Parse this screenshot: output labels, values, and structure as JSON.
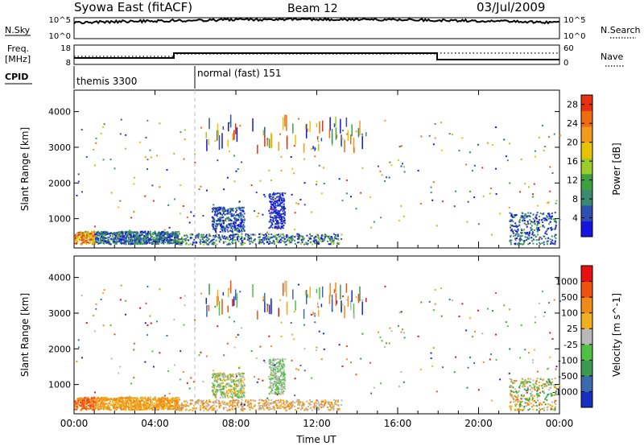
{
  "header": {
    "station": "Syowa East (fitACF)",
    "beam": "Beam 12",
    "date": "03/Jul/2009"
  },
  "nsky_panel": {
    "left_label": "N.Sky",
    "left_ticks": [
      "10^5",
      "10^0"
    ],
    "right_label": "N.Search",
    "right_ticks": [
      "10^5",
      "10^0"
    ]
  },
  "freq_panel": {
    "left_label_1": "Freq.",
    "left_label_2": "[MHz]",
    "left_ticks": [
      "18",
      "8"
    ],
    "right_label": "Nave",
    "right_ticks": [
      "60",
      "0"
    ]
  },
  "cpid": {
    "label": "CPID",
    "segments": [
      {
        "name": "themis 3300",
        "start_hour": 0
      },
      {
        "name": "normal (fast) 151",
        "start_hour": 6
      }
    ]
  },
  "chart_data": [
    {
      "type": "heatmap",
      "ylabel": "Slant Range [km]",
      "xlabel": "Time UT",
      "x_ticks": [
        "00:00",
        "04:00",
        "08:00",
        "12:00",
        "16:00",
        "20:00",
        "00:00"
      ],
      "xlim_hours": [
        0,
        24
      ],
      "y_ticks": [
        1000,
        2000,
        3000,
        4000
      ],
      "ylim": [
        180,
        4600
      ],
      "colorbar": {
        "label": "Power [dB]",
        "ticks": [
          4,
          8,
          12,
          16,
          20,
          24,
          28
        ],
        "range": [
          0,
          30
        ],
        "colors": [
          "#1515e0",
          "#2e4fb0",
          "#3a8a70",
          "#3fa03f",
          "#9ccc2c",
          "#e8c400",
          "#f09a20",
          "#f06a10",
          "#e83010"
        ]
      }
    },
    {
      "type": "heatmap",
      "ylabel": "Slant Range [km]",
      "xlabel": "Time UT",
      "x_ticks": [
        "00:00",
        "04:00",
        "08:00",
        "12:00",
        "16:00",
        "20:00",
        "00:00"
      ],
      "xlim_hours": [
        0,
        24
      ],
      "y_ticks": [
        1000,
        2000,
        3000,
        4000
      ],
      "ylim": [
        180,
        4600
      ],
      "colorbar": {
        "label": "Velocity [m s^-1]",
        "ticks": [
          "1000",
          "500",
          "100",
          "25",
          "-25",
          "-100",
          "-500",
          "-1000"
        ],
        "colors": [
          "#1530c0",
          "#3a6ab0",
          "#3a9a50",
          "#50c040",
          "#b8b8b8",
          "#f0b020",
          "#f08a18",
          "#f05010",
          "#e81010"
        ]
      }
    }
  ]
}
